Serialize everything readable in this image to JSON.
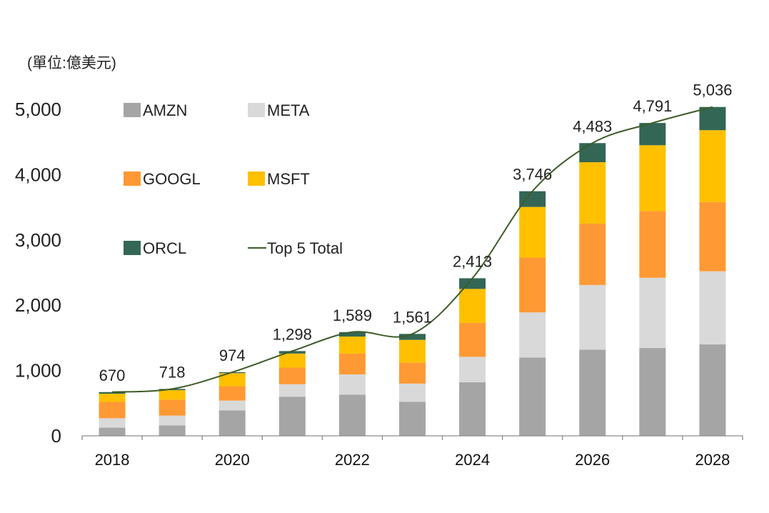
{
  "chart_data": {
    "type": "bar",
    "stacked": true,
    "unit_label": "(單位:億美元)",
    "categories": [
      "2018",
      "2019",
      "2020",
      "2021",
      "2022",
      "2023",
      "2024",
      "2025",
      "2026",
      "2027",
      "2028"
    ],
    "x_tick_labels": [
      "2018",
      "",
      "2020",
      "",
      "2022",
      "",
      "2024",
      "",
      "2026",
      "",
      "2028"
    ],
    "series": [
      {
        "name": "AMZN",
        "color": "#a5a5a5",
        "values": [
          125,
          160,
          390,
          600,
          630,
          520,
          820,
          1200,
          1320,
          1345,
          1400
        ]
      },
      {
        "name": "META",
        "color": "#d9d9d9",
        "values": [
          145,
          150,
          150,
          190,
          310,
          280,
          390,
          690,
          990,
          1075,
          1120
        ]
      },
      {
        "name": "GOOGL",
        "color": "#ff9933",
        "values": [
          250,
          245,
          220,
          255,
          320,
          320,
          520,
          840,
          940,
          1020,
          1060
        ]
      },
      {
        "name": "MSFT",
        "color": "#ffc000",
        "values": [
          125,
          145,
          200,
          215,
          260,
          350,
          520,
          775,
          940,
          1010,
          1100
        ]
      },
      {
        "name": "ORCL",
        "color": "#336655",
        "values": [
          25,
          18,
          14,
          38,
          69,
          91,
          163,
          241,
          293,
          341,
          356
        ]
      }
    ],
    "line": {
      "name": "Top 5 Total",
      "color": "#3d5c28",
      "values": [
        670,
        718,
        974,
        1298,
        1589,
        1561,
        2413,
        3746,
        4483,
        4791,
        5036
      ]
    },
    "total_labels": [
      "670",
      "718",
      "974",
      "1,298",
      "1,589",
      "1,561",
      "2,413",
      "3,746",
      "4,483",
      "4,791",
      "5,036"
    ],
    "ylim": [
      0,
      5000
    ],
    "y_ticks": [
      0,
      1000,
      2000,
      3000,
      4000,
      5000
    ],
    "y_tick_labels": [
      "0",
      "1,000",
      "2,000",
      "3,000",
      "4,000",
      "5,000"
    ],
    "grid": false,
    "legend_placement": "top-left",
    "title": "",
    "xlabel": "",
    "ylabel": ""
  }
}
